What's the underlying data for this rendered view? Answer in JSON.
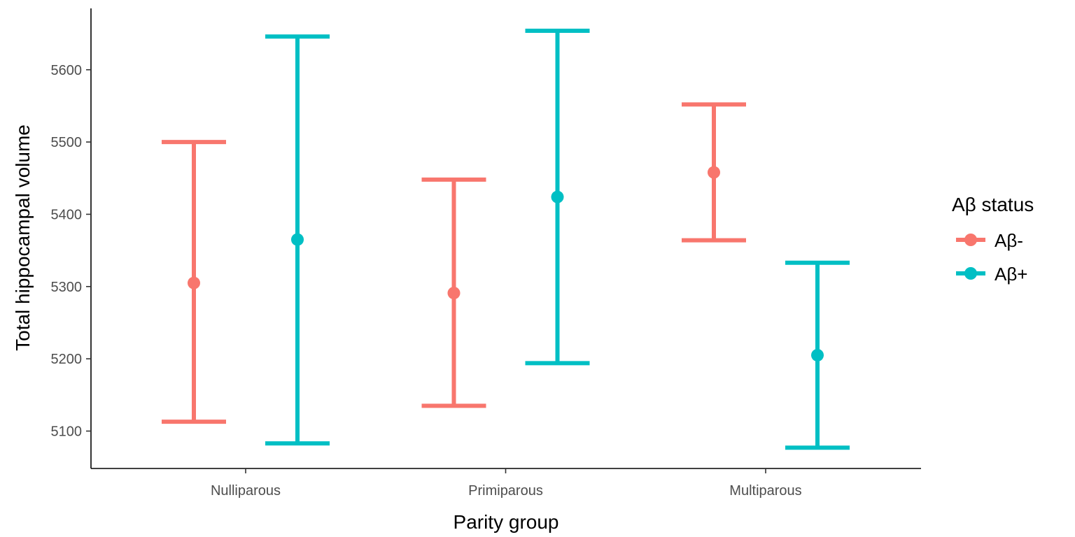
{
  "chart_data": {
    "type": "scatter",
    "subtype": "point-errorbar",
    "xlabel": "Parity group",
    "ylabel": "Total hippocampal volume",
    "categories": [
      "Nulliparous",
      "Primiparous",
      "Multiparous"
    ],
    "ylim": [
      5050,
      5680
    ],
    "yticks": [
      5100,
      5200,
      5300,
      5400,
      5500,
      5600
    ],
    "grid": false,
    "legend": {
      "title": "Aβ status",
      "position": "right"
    },
    "series": [
      {
        "name": "Aβ-",
        "color": "#F8766D",
        "values": [
          5305,
          5291,
          5458
        ],
        "lower": [
          5113,
          5135,
          5364
        ],
        "upper": [
          5500,
          5448,
          5552
        ]
      },
      {
        "name": "Aβ+",
        "color": "#00BFC4",
        "values": [
          5365,
          5424,
          5205
        ],
        "lower": [
          5083,
          5194,
          5077
        ],
        "upper": [
          5646,
          5654,
          5333
        ]
      }
    ]
  }
}
